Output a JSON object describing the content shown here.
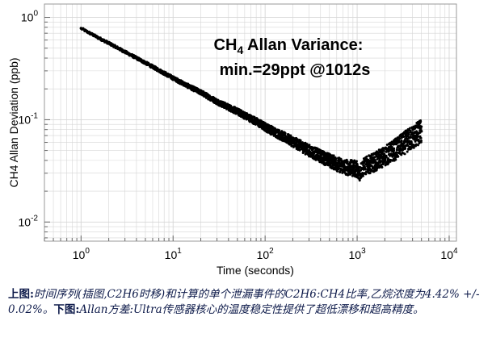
{
  "chart_data": {
    "type": "scatter",
    "xlabel": "Time (seconds)",
    "ylabel": "CH4 Allan Deviation (ppb)",
    "xscale": "log",
    "yscale": "log",
    "xlim": [
      0.4,
      12000
    ],
    "ylim": [
      0.0065,
      1.35
    ],
    "xticks": [
      1,
      10,
      100,
      1000,
      10000
    ],
    "xtick_labels": [
      "10^0",
      "10^1",
      "10^2",
      "10^3",
      "10^4"
    ],
    "yticks": [
      0.01,
      0.1,
      1
    ],
    "ytick_labels": [
      "10^-2",
      "10^-1",
      "10^0"
    ],
    "grid": true,
    "annotation": {
      "line1_prefix": "CH",
      "line1_sub": "4",
      "line1_suffix": " Allan Variance:",
      "line2": "min.=29ppt @1012s"
    },
    "series": [
      {
        "x": [
          1,
          1.5,
          2,
          3,
          5,
          8,
          10,
          15,
          20,
          30,
          50,
          80,
          100,
          150,
          200,
          300,
          400,
          500,
          600,
          700,
          800,
          1000,
          1012,
          1200,
          1500,
          2000,
          2500,
          3000,
          3500,
          4000,
          4500,
          5000
        ],
        "y": [
          0.78,
          0.64,
          0.56,
          0.46,
          0.36,
          0.285,
          0.255,
          0.21,
          0.185,
          0.15,
          0.12,
          0.096,
          0.085,
          0.07,
          0.061,
          0.05,
          0.044,
          0.04,
          0.037,
          0.035,
          0.034,
          0.033,
          0.029,
          0.035,
          0.038,
          0.044,
          0.05,
          0.056,
          0.062,
          0.067,
          0.072,
          0.077
        ]
      }
    ]
  },
  "caption": {
    "top_label": "上图:",
    "top_text": "时间序列(插图,C2H6时移)和计算的单个泄漏事件的C2H6:CH4比率,乙烷浓度为4.42% +/- 0.02%。",
    "bottom_label": "下图:",
    "bottom_text": "Allan方差:Ultra传感器核心的温度稳定性提供了超低漂移和超高精度。"
  },
  "colors": {
    "data": "#000000",
    "grid": "#d6d6d6",
    "caption": "#0d1a4a"
  }
}
